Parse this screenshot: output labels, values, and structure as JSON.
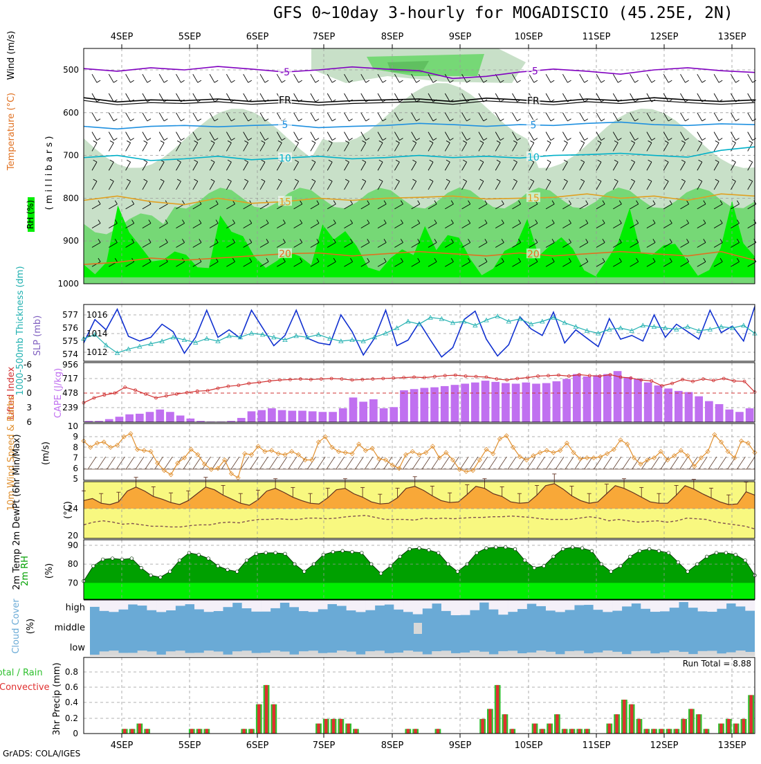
{
  "header": {
    "title": "GFS 0~10day 3-hourly for MOGADISCIO (45.25E, 2N)",
    "credit": "GrADS: COLA/IGES"
  },
  "colors": {
    "purple": "#8000c0",
    "black": "#000000",
    "blue": "#1e90e0",
    "cyan": "#00b0c8",
    "gold": "#e0a020",
    "orange": "#e07020",
    "rh_green": "#00ee00",
    "rh_mid": "#76d876",
    "rh_light": "#c8e0c8",
    "slp": "#1030d0",
    "thick": "#20b0b0",
    "li": "#d03030",
    "cape": "#c070f0",
    "wind": "#e09030",
    "temp_fill": "#f8a838",
    "dew_fill": "#f8f880",
    "dew_line": "#805050",
    "rh2m_dark": "#00a000",
    "rh2m_light": "#00ee00",
    "cloud": "#6aaad6",
    "cloud_bg": "#f4f0f8",
    "rain": "#e03030",
    "conv": "#30c030"
  },
  "chart_data": [
    {
      "id": "upper-air",
      "type": "contour",
      "x": [
        "4SEP",
        "5SEP",
        "6SEP",
        "7SEP",
        "8SEP",
        "9SEP",
        "10SEP",
        "11SEP",
        "12SEP",
        "13SEP"
      ],
      "ylabel": "Wind (m/s)",
      "ylabel_temp": "Temperature (°C)",
      "ylabel_rh": "RH (%)",
      "ylabel_units": "( m i l l i b a r s )",
      "y_ticks": [
        500,
        600,
        700,
        800,
        900,
        1000
      ],
      "ylim": [
        1000,
        450
      ],
      "isotherms": [
        {
          "label": "-5",
          "p": [
            497,
            503,
            495,
            500,
            492,
            498,
            505,
            500,
            493,
            498,
            502,
            520,
            515,
            505,
            498,
            503,
            510,
            500,
            495,
            502,
            506
          ],
          "color": "purple"
        },
        {
          "label": "FR",
          "p": [
            565,
            575,
            570,
            572,
            568,
            574,
            570,
            576,
            572,
            570,
            568,
            574,
            566,
            570,
            575,
            568,
            572,
            565,
            570,
            574,
            570
          ],
          "color": "black"
        },
        {
          "label": "5",
          "p": [
            632,
            638,
            632,
            630,
            633,
            630,
            628,
            635,
            632,
            630,
            625,
            628,
            632,
            628,
            630,
            625,
            622,
            628,
            630,
            626,
            628
          ],
          "color": "blue"
        },
        {
          "label": "10",
          "p": [
            705,
            700,
            712,
            708,
            702,
            710,
            706,
            702,
            708,
            705,
            700,
            705,
            702,
            706,
            700,
            698,
            695,
            700,
            704,
            688,
            680
          ],
          "color": "cyan"
        },
        {
          "label": "15",
          "p": [
            805,
            795,
            808,
            815,
            800,
            812,
            808,
            800,
            805,
            800,
            798,
            795,
            802,
            800,
            798,
            790,
            800,
            795,
            805,
            790,
            795
          ],
          "color": "gold"
        },
        {
          "label": "20",
          "p": [
            955,
            950,
            940,
            945,
            940,
            935,
            930,
            928,
            935,
            930,
            925,
            930,
            935,
            928,
            935,
            930,
            925,
            930,
            935,
            925,
            945
          ],
          "color": "orange"
        }
      ]
    },
    {
      "id": "slp-thickness",
      "type": "line",
      "ylabel_left": "1000-500mb Thickness (dm)",
      "ylabel_right": "SLP (mb)",
      "left_ticks": [
        574,
        575,
        576,
        577
      ],
      "right_ticks": [
        1012,
        1014,
        1016
      ],
      "series": [
        {
          "id": "slp",
          "values": [
            1013.0,
            1015.5,
            1014.4,
            1016.6,
            1013.7,
            1013.2,
            1013.6,
            1015.0,
            1014.2,
            1011.9,
            1013.6,
            1016.5,
            1013.6,
            1014.4,
            1013.5,
            1016.5,
            1014.6,
            1012.7,
            1013.8,
            1016.5,
            1013.5,
            1013.0,
            1012.8,
            1016.0,
            1014.2,
            1011.7,
            1013.5,
            1016.5,
            1012.7,
            1013.3,
            1015.2,
            1013.3,
            1011.5,
            1012.5,
            1015.5,
            1016.4,
            1013.4,
            1011.6,
            1012.8,
            1015.8,
            1014.5,
            1013.8,
            1016.3,
            1013.0,
            1014.4,
            1013.5,
            1012.6,
            1015.6,
            1013.4,
            1013.8,
            1013.2,
            1016.0,
            1013.6,
            1015.0,
            1014.2,
            1013.4,
            1016.5,
            1014.1,
            1014.8,
            1013.2,
            1016.9
          ]
        },
        {
          "id": "thickness",
          "values": [
            575.2,
            575.5,
            574.7,
            574.1,
            574.4,
            574.6,
            574.8,
            575.0,
            575.3,
            575.1,
            574.9,
            575.2,
            575.0,
            575.4,
            575.3,
            575.6,
            575.5,
            575.3,
            575.1,
            575.4,
            575.3,
            575.5,
            575.2,
            575.0,
            575.1,
            575.0,
            575.3,
            575.6,
            576.0,
            576.5,
            576.3,
            576.8,
            576.7,
            576.4,
            576.5,
            576.2,
            576.6,
            576.9,
            576.5,
            576.7,
            576.3,
            576.5,
            576.8,
            576.4,
            576.1,
            575.8,
            575.6,
            575.9,
            576.0,
            575.8,
            576.2,
            576.1,
            576.0,
            575.9,
            576.1,
            575.8,
            575.9,
            576.1,
            576.0,
            576.2,
            575.6
          ]
        }
      ]
    },
    {
      "id": "cape-li",
      "type": "bar",
      "ylabel_left": "Lifted Index",
      "ylabel_right": "CAPE (J/kg)",
      "left_ticks": [
        "-6",
        "-3",
        "0",
        "3",
        "6"
      ],
      "right_ticks": [
        "956",
        "717",
        "478",
        "239"
      ],
      "series": [
        {
          "id": "cape",
          "values": [
            20,
            20,
            50,
            90,
            130,
            140,
            170,
            210,
            170,
            110,
            60,
            20,
            10,
            10,
            20,
            70,
            180,
            200,
            230,
            200,
            190,
            190,
            180,
            170,
            170,
            230,
            410,
            340,
            380,
            230,
            250,
            530,
            550,
            570,
            580,
            600,
            620,
            640,
            660,
            690,
            670,
            650,
            640,
            660,
            640,
            650,
            680,
            720,
            800,
            760,
            780,
            800,
            850,
            750,
            720,
            660,
            610,
            560,
            520,
            500,
            430,
            350,
            300,
            210,
            170,
            230
          ]
        },
        {
          "id": "li",
          "values": [
            2.0,
            1.0,
            0.4,
            0.0,
            -1.2,
            -0.6,
            0.2,
            1.0,
            0.6,
            0.2,
            -0.1,
            -0.4,
            -0.5,
            -1.0,
            -1.4,
            -1.6,
            -2.0,
            -2.2,
            -2.5,
            -2.7,
            -2.8,
            -2.9,
            -2.8,
            -2.9,
            -3.0,
            -2.9,
            -2.7,
            -2.8,
            -2.9,
            -3.0,
            -3.1,
            -3.2,
            -3.3,
            -3.2,
            -3.4,
            -3.6,
            -3.7,
            -3.5,
            -3.4,
            -3.3,
            -2.9,
            -2.7,
            -3.0,
            -3.2,
            -3.5,
            -3.6,
            -3.7,
            -3.5,
            -3.8,
            -3.6,
            -3.5,
            -3.8,
            -3.3,
            -3.1,
            -2.7,
            -2.5,
            -1.5,
            -2.0,
            -2.8,
            -2.4,
            -2.9,
            -2.6,
            -3.0,
            -2.5,
            -2.4,
            -0.2
          ]
        }
      ]
    },
    {
      "id": "wind10m",
      "type": "line",
      "ylabel_left": "10m Wind Speed & Barbs",
      "ylabel_right": "(m/s)",
      "y_ticks": [
        5,
        6,
        7,
        8,
        9,
        10
      ],
      "ylim": [
        5,
        10
      ],
      "values": [
        8.6,
        8.0,
        8.4,
        8.5,
        8.0,
        8.2,
        9.0,
        9.3,
        7.8,
        7.7,
        7.6,
        6.5,
        5.8,
        5.4,
        6.5,
        7.0,
        7.8,
        7.3,
        6.4,
        5.9,
        6.0,
        6.8,
        5.5,
        5.1,
        7.4,
        7.3,
        8.1,
        7.6,
        7.7,
        7.4,
        7.3,
        7.6,
        7.3,
        6.8,
        6.8,
        8.5,
        9.0,
        8.0,
        7.6,
        7.5,
        7.4,
        8.3,
        7.7,
        7.9,
        6.9,
        6.8,
        6.3,
        6.0,
        7.3,
        7.6,
        7.3,
        7.5,
        8.1,
        7.0,
        7.5,
        6.8,
        5.9,
        5.7,
        5.8,
        6.8,
        7.8,
        7.4,
        8.8,
        9.1,
        8.0,
        7.1,
        6.8,
        7.2,
        7.5,
        7.7,
        7.5,
        7.7,
        8.4,
        7.5,
        6.9,
        7.0,
        7.0,
        7.1,
        7.4,
        7.8,
        8.7,
        8.3,
        7.0,
        6.4,
        6.8,
        7.0,
        7.6,
        6.8,
        7.2,
        7.7,
        7.2,
        6.2,
        7.0,
        7.6,
        9.2,
        8.5,
        7.6,
        7.0,
        8.6,
        8.4,
        7.5
      ]
    },
    {
      "id": "temp2m",
      "type": "area",
      "ylabel": "2m Temp 2m DewPt (6hr Min/Max)",
      "ylabel_right": "(°C)",
      "y_ticks": [
        20,
        24
      ],
      "ylim": [
        19.8,
        28
      ],
      "series": [
        {
          "id": "temp",
          "values": [
            25.2,
            25.5,
            24.8,
            24.6,
            25.0,
            26.6,
            27.2,
            26.6,
            25.8,
            25.4,
            24.9,
            24.6,
            25.2,
            26.2,
            27.2,
            26.8,
            26.0,
            25.4,
            24.8,
            24.5,
            25.3,
            26.6,
            27.0,
            26.4,
            25.7,
            25.2,
            24.8,
            24.7,
            25.6,
            26.8,
            27.0,
            26.2,
            25.7,
            25.0,
            24.7,
            24.8,
            25.6,
            27.0,
            27.3,
            26.7,
            25.9,
            25.2,
            24.9,
            25.0,
            26.1,
            27.3,
            27.0,
            26.2,
            25.8,
            25.0,
            24.8,
            24.9,
            26.0,
            27.4,
            27.7,
            26.9,
            25.9,
            25.2,
            24.8,
            25.0,
            26.2,
            27.4,
            27.0,
            26.4,
            25.7,
            25.0,
            24.8,
            24.8,
            26.0,
            27.4,
            26.9,
            26.2,
            25.6,
            25.0,
            24.6,
            24.7,
            26.5,
            26.0
          ]
        },
        {
          "id": "dewpt",
          "values": [
            21.6,
            22.0,
            22.2,
            22.0,
            21.7,
            21.8,
            21.6,
            21.4,
            21.4,
            21.3,
            21.3,
            21.5,
            21.6,
            21.6,
            21.9,
            22.0,
            21.9,
            22.2,
            22.4,
            22.4,
            22.5,
            22.4,
            22.4,
            22.6,
            22.6,
            22.5,
            22.6,
            22.8,
            22.9,
            23.0,
            22.7,
            22.4,
            22.4,
            22.4,
            22.3,
            22.6,
            22.5,
            22.6,
            22.5,
            22.6,
            22.7,
            22.7,
            22.8,
            22.8,
            22.9,
            22.8,
            22.7,
            22.5,
            22.4,
            22.4,
            22.4,
            22.6,
            22.8,
            22.6,
            22.2,
            22.4,
            22.2,
            22.0,
            22.1,
            22.2,
            22.0,
            22.2,
            22.6,
            22.5,
            22.4,
            22.0,
            21.8,
            21.6,
            21.4,
            21.0
          ]
        }
      ]
    },
    {
      "id": "rh2m",
      "type": "area",
      "ylabel": "2m RH",
      "ylabel_right": "(%)",
      "y_ticks": [
        70,
        80,
        90
      ],
      "ylim": [
        62,
        90
      ],
      "values": [
        71,
        79,
        82.5,
        83,
        82.5,
        83,
        78,
        74,
        73,
        76,
        82,
        86,
        85,
        83,
        79,
        77,
        76,
        82,
        85.5,
        86,
        86,
        85.5,
        80,
        76,
        80,
        85,
        86.5,
        87,
        86.5,
        86,
        80,
        75,
        79,
        84,
        88,
        88.5,
        87.5,
        86,
        80,
        76,
        80,
        86,
        88.5,
        89,
        89,
        88,
        82,
        78,
        79,
        84,
        88,
        89,
        88.5,
        87,
        80,
        76,
        79,
        84,
        87,
        88,
        87,
        86,
        81,
        76,
        80,
        84,
        86,
        86,
        85,
        82,
        74
      ]
    },
    {
      "id": "cloud",
      "type": "bar",
      "ylabel": "Cloud Cover (%)",
      "categories": [
        "high",
        "middle",
        "low"
      ]
    },
    {
      "id": "precip",
      "type": "bar",
      "ylabel": "3hr Precip (mm)",
      "ylabel_left": "Total / Rain Convective",
      "annotation": "Run Total = 8.88",
      "y_ticks": [
        "0",
        "0.2",
        "0.4",
        "0.6",
        "0.8"
      ],
      "ylim": [
        0,
        0.95
      ],
      "values": [
        0,
        0,
        0,
        0,
        0,
        0.06,
        0.06,
        0.13,
        0.06,
        0,
        0,
        0,
        0,
        0,
        0.06,
        0.06,
        0.06,
        0,
        0,
        0,
        0,
        0.06,
        0.06,
        0.38,
        0.63,
        0.38,
        0,
        0,
        0,
        0,
        0,
        0.13,
        0.19,
        0.19,
        0.19,
        0.13,
        0.06,
        0,
        0,
        0,
        0,
        0,
        0,
        0.06,
        0.06,
        0,
        0,
        0.06,
        0,
        0,
        0,
        0,
        0,
        0.19,
        0.32,
        0.63,
        0.25,
        0.06,
        0,
        0,
        0.13,
        0.06,
        0.13,
        0.25,
        0.06,
        0.06,
        0.06,
        0.06,
        0,
        0,
        0.13,
        0.25,
        0.44,
        0.38,
        0.19,
        0.06,
        0.06,
        0.06,
        0.06,
        0.06,
        0.19,
        0.32,
        0.25,
        0.06,
        0,
        0.13,
        0.19,
        0.13,
        0.19,
        0.5
      ]
    }
  ]
}
